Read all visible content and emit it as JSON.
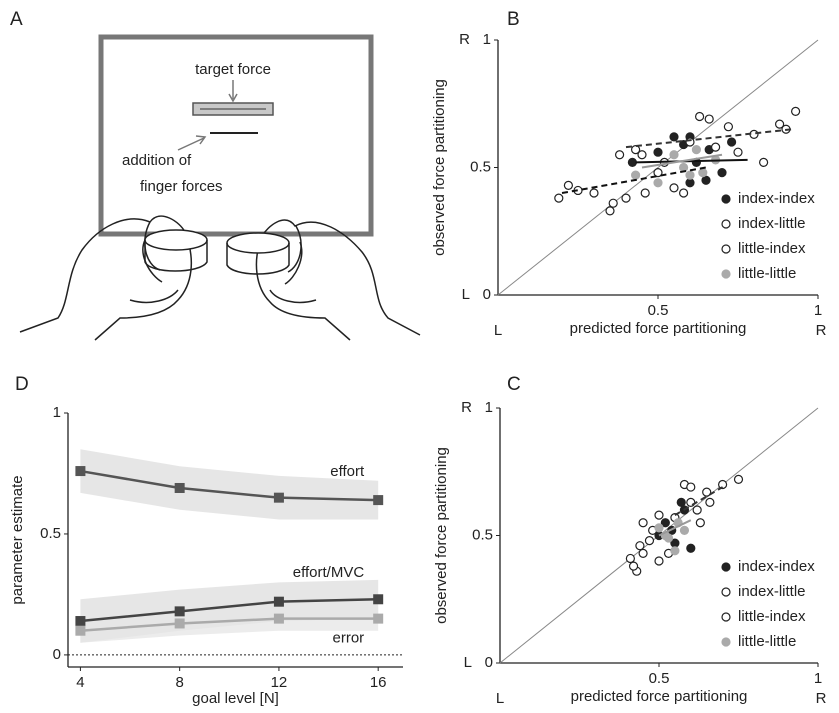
{
  "illustration": {
    "panel": "A",
    "labels": [
      "target force",
      "addition of",
      "finger forces"
    ]
  },
  "chart_data": [
    {
      "type": "scatter",
      "panel": "B",
      "xlabel": "predicted force partitioning",
      "ylabel": "observed force partitioning",
      "xlim": [
        0,
        1
      ],
      "ylim": [
        0,
        1
      ],
      "xticks": [
        0.5,
        1
      ],
      "yticks": [
        0,
        0.5,
        1
      ],
      "x_end_labels": [
        "L",
        "R"
      ],
      "y_end_labels": [
        "L",
        "R"
      ],
      "identity_line": true,
      "legend": "lower right",
      "series": [
        {
          "name": "index-index",
          "color": "#222222",
          "marker": "filled",
          "x": [
            0.42,
            0.5,
            0.58,
            0.6,
            0.62,
            0.65,
            0.7,
            0.73,
            0.6,
            0.55,
            0.66
          ],
          "y": [
            0.52,
            0.56,
            0.59,
            0.62,
            0.52,
            0.45,
            0.48,
            0.6,
            0.44,
            0.62,
            0.57
          ]
        },
        {
          "name": "index-little",
          "color": "#222222",
          "marker": "open",
          "x": [
            0.22,
            0.3,
            0.35,
            0.4,
            0.38,
            0.45,
            0.5,
            0.55,
            0.63,
            0.72,
            0.8,
            0.88,
            0.93,
            0.58
          ],
          "y": [
            0.43,
            0.4,
            0.33,
            0.38,
            0.55,
            0.55,
            0.48,
            0.42,
            0.7,
            0.66,
            0.63,
            0.67,
            0.72,
            0.4
          ]
        },
        {
          "name": "little-index",
          "color": "#222222",
          "marker": "open",
          "x": [
            0.19,
            0.25,
            0.36,
            0.43,
            0.52,
            0.6,
            0.68,
            0.75,
            0.83,
            0.9,
            0.46,
            0.66
          ],
          "y": [
            0.38,
            0.41,
            0.36,
            0.57,
            0.52,
            0.6,
            0.58,
            0.56,
            0.52,
            0.65,
            0.4,
            0.69
          ]
        },
        {
          "name": "little-little",
          "color": "#aaaaaa",
          "marker": "filled",
          "x": [
            0.43,
            0.5,
            0.55,
            0.58,
            0.62,
            0.64,
            0.68,
            0.6
          ],
          "y": [
            0.47,
            0.44,
            0.55,
            0.5,
            0.57,
            0.48,
            0.53,
            0.47
          ]
        }
      ],
      "fit_lines": [
        {
          "color": "#111111",
          "dash": "solid",
          "x": [
            0.43,
            0.78
          ],
          "y": [
            0.52,
            0.53
          ]
        },
        {
          "color": "#111111",
          "dash": "dashed",
          "x": [
            0.2,
            0.65
          ],
          "y": [
            0.4,
            0.5
          ]
        },
        {
          "color": "#333333",
          "dash": "dashed",
          "x": [
            0.4,
            0.92
          ],
          "y": [
            0.58,
            0.65
          ]
        },
        {
          "color": "#999999",
          "dash": "solid",
          "x": [
            0.45,
            0.7
          ],
          "y": [
            0.5,
            0.55
          ]
        }
      ]
    },
    {
      "type": "line",
      "panel": "D",
      "xlabel": "goal level [N]",
      "ylabel": "parameter estimate",
      "x": [
        4,
        8,
        12,
        16
      ],
      "xlim": [
        3.5,
        17
      ],
      "ylim": [
        -0.05,
        1
      ],
      "xticks": [
        4,
        8,
        12,
        16
      ],
      "yticks": [
        0,
        0.5,
        1
      ],
      "zero_line": true,
      "series": [
        {
          "name": "effort",
          "color": "#555555",
          "band_color": "#dddddd",
          "values": [
            0.76,
            0.69,
            0.65,
            0.64
          ],
          "lower": [
            0.67,
            0.6,
            0.56,
            0.56
          ],
          "upper": [
            0.85,
            0.78,
            0.74,
            0.72
          ]
        },
        {
          "name": "effort/MVC",
          "color": "#444444",
          "band_color": "#dddddd",
          "values": [
            0.14,
            0.18,
            0.22,
            0.23
          ],
          "lower": [
            0.05,
            0.1,
            0.14,
            0.15
          ],
          "upper": [
            0.23,
            0.27,
            0.3,
            0.31
          ]
        },
        {
          "name": "error",
          "color": "#aaaaaa",
          "band_color": "#e6e6e6",
          "values": [
            0.1,
            0.13,
            0.15,
            0.15
          ],
          "lower": [
            0.05,
            0.08,
            0.1,
            0.1
          ],
          "upper": [
            0.15,
            0.18,
            0.2,
            0.2
          ]
        }
      ]
    },
    {
      "type": "scatter",
      "panel": "C",
      "xlabel": "predicted force partitioning",
      "ylabel": "observed force partitioning",
      "xlim": [
        0,
        1
      ],
      "ylim": [
        0,
        1
      ],
      "xticks": [
        0.5,
        1
      ],
      "yticks": [
        0,
        0.5,
        1
      ],
      "x_end_labels": [
        "L",
        "R"
      ],
      "y_end_labels": [
        "L",
        "R"
      ],
      "identity_line": true,
      "legend": "lower right",
      "series": [
        {
          "name": "index-index",
          "color": "#222222",
          "marker": "filled",
          "x": [
            0.52,
            0.55,
            0.58,
            0.6,
            0.54,
            0.57,
            0.5
          ],
          "y": [
            0.55,
            0.47,
            0.6,
            0.45,
            0.52,
            0.63,
            0.5
          ]
        },
        {
          "name": "index-little",
          "color": "#222222",
          "marker": "open",
          "x": [
            0.41,
            0.43,
            0.45,
            0.48,
            0.55,
            0.6,
            0.65,
            0.7,
            0.75,
            0.45,
            0.58
          ],
          "y": [
            0.41,
            0.36,
            0.43,
            0.52,
            0.57,
            0.63,
            0.67,
            0.7,
            0.72,
            0.55,
            0.7
          ]
        },
        {
          "name": "little-index",
          "color": "#222222",
          "marker": "open",
          "x": [
            0.42,
            0.44,
            0.47,
            0.5,
            0.53,
            0.62,
            0.66,
            0.6,
            0.5,
            0.63
          ],
          "y": [
            0.38,
            0.46,
            0.48,
            0.58,
            0.43,
            0.6,
            0.63,
            0.69,
            0.4,
            0.55
          ]
        },
        {
          "name": "little-little",
          "color": "#aaaaaa",
          "marker": "filled",
          "x": [
            0.5,
            0.53,
            0.56,
            0.58,
            0.55,
            0.52
          ],
          "y": [
            0.53,
            0.49,
            0.55,
            0.52,
            0.44,
            0.5
          ]
        }
      ],
      "fit_lines": [
        {
          "color": "#999999",
          "dash": "solid",
          "x": [
            0.5,
            0.6
          ],
          "y": [
            0.5,
            0.56
          ]
        },
        {
          "color": "#333333",
          "dash": "dashed",
          "x": [
            0.55,
            0.7
          ],
          "y": [
            0.58,
            0.69
          ]
        }
      ]
    }
  ]
}
